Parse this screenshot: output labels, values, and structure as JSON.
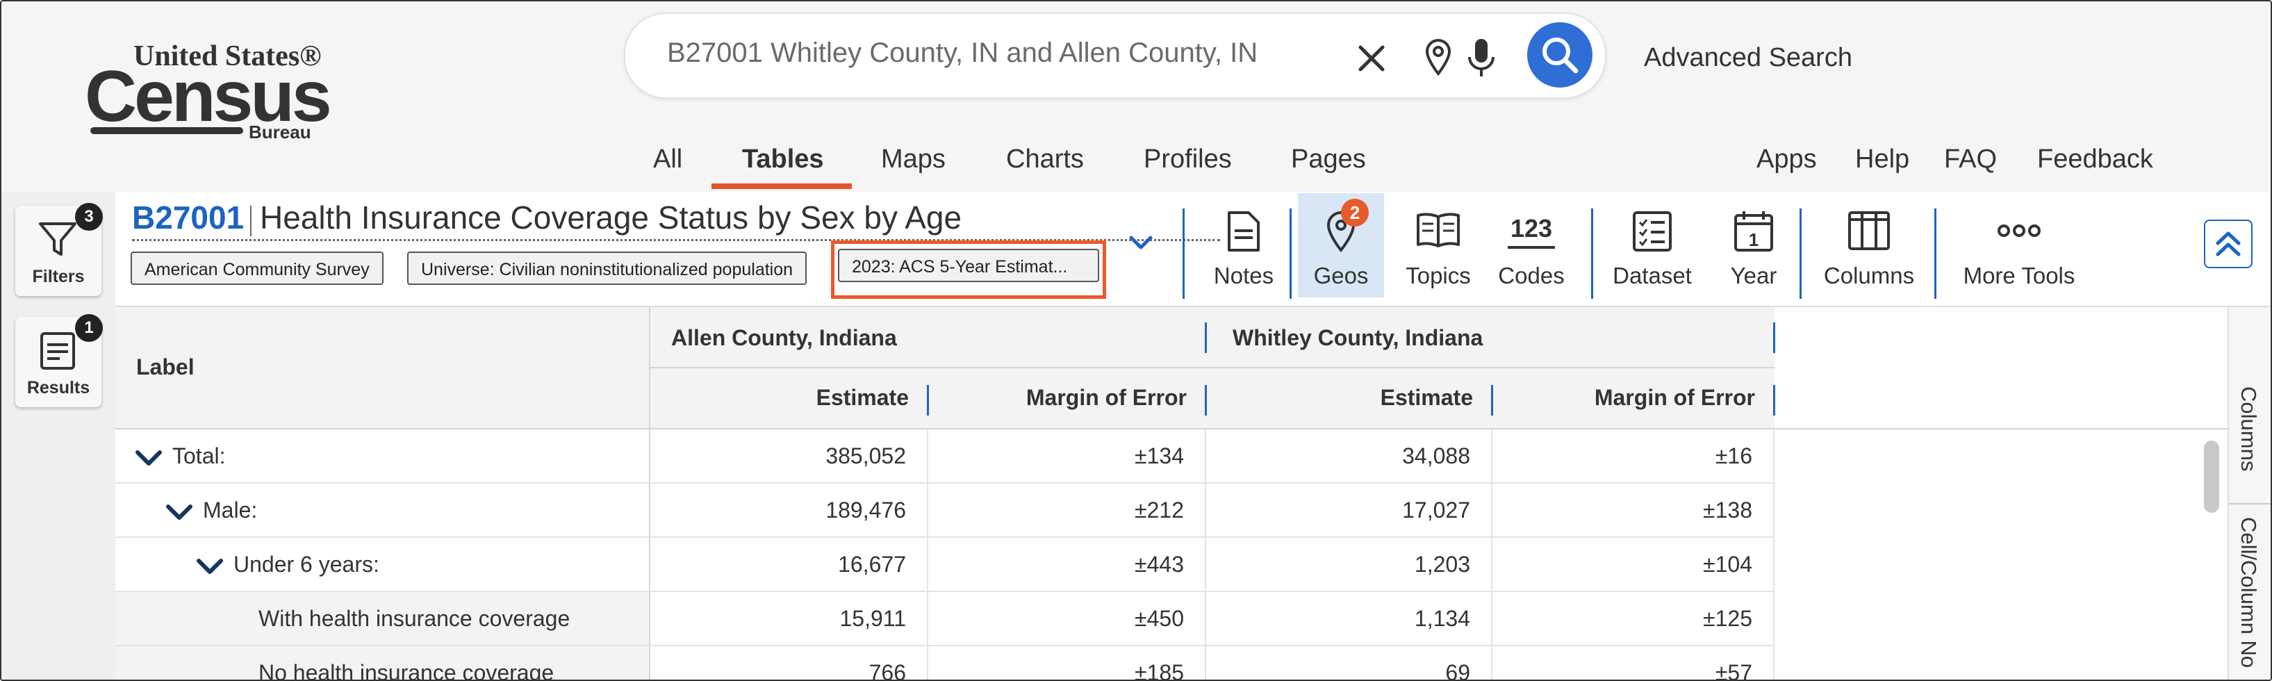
{
  "brand": {
    "line1": "United States®",
    "line2": "Census",
    "line3": "Bureau"
  },
  "search": {
    "query": "B27001 Whitley County, IN and Allen County, IN",
    "advanced_label": "Advanced Search"
  },
  "nav": {
    "tabs": [
      "All",
      "Tables",
      "Maps",
      "Charts",
      "Profiles",
      "Pages"
    ],
    "active_tab": "Tables",
    "right_links": [
      "Apps",
      "Help",
      "FAQ",
      "Feedback"
    ]
  },
  "rail": {
    "filters": {
      "label": "Filters",
      "count": "3"
    },
    "results": {
      "label": "Results",
      "count": "1"
    }
  },
  "table_header": {
    "id": "B27001",
    "title": "Health Insurance Coverage Status by Sex by Age",
    "chips": [
      "American Community Survey",
      "Universe: Civilian noninstitutionalized population",
      "2023: ACS 5-Year Estimat..."
    ]
  },
  "toolbar": {
    "items": [
      {
        "label": "Notes",
        "icon": "notes-icon"
      },
      {
        "label": "Geos",
        "icon": "location-pin-icon",
        "badge": "2"
      },
      {
        "label": "Topics",
        "icon": "book-icon"
      },
      {
        "label": "Codes",
        "icon": "codes-icon",
        "icon_text": "123"
      },
      {
        "label": "Dataset",
        "icon": "checklist-icon"
      },
      {
        "label": "Year",
        "icon": "calendar-icon",
        "icon_text": "1"
      },
      {
        "label": "Columns",
        "icon": "columns-icon"
      },
      {
        "label": "More Tools",
        "icon": "ellipsis-icon"
      }
    ],
    "accent": "#1e63c2",
    "highlight": "#e85a2c"
  },
  "table": {
    "label_header": "Label",
    "geos": [
      "Allen County, Indiana",
      "Whitley County, Indiana"
    ],
    "subheaders": [
      "Estimate",
      "Margin of Error",
      "Estimate",
      "Margin of Error"
    ],
    "rows": [
      {
        "label": "Total:",
        "values": [
          "385,052",
          "±134",
          "34,088",
          "±16"
        ]
      },
      {
        "label": "Male:",
        "values": [
          "189,476",
          "±212",
          "17,027",
          "±138"
        ]
      },
      {
        "label": "Under 6 years:",
        "values": [
          "16,677",
          "±443",
          "1,203",
          "±104"
        ]
      },
      {
        "label": "With health insurance coverage",
        "values": [
          "15,911",
          "±450",
          "1,134",
          "±125"
        ]
      },
      {
        "label": "No health insurance coverage",
        "values": [
          "766",
          "±185",
          "69",
          "±57"
        ]
      }
    ]
  },
  "side_panels": [
    "Columns",
    "Cell/Column No"
  ]
}
